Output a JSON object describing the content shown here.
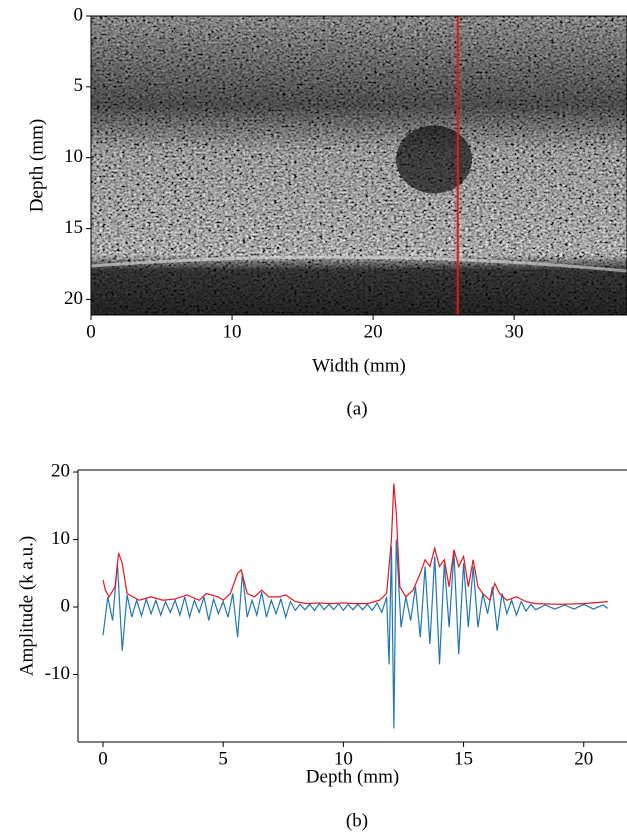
{
  "chart_data": [
    {
      "type": "image",
      "caption": "(a)",
      "xlabel": "Width (mm)",
      "ylabel": "Depth (mm)",
      "xlim": [
        0,
        38
      ],
      "ylim": [
        0,
        21.1
      ],
      "y_inverted": true,
      "xticks": [
        0,
        10,
        20,
        30
      ],
      "yticks": [
        0,
        5,
        10,
        15,
        20
      ],
      "vline": {
        "x": 26,
        "color": "#e8141e"
      }
    },
    {
      "type": "line",
      "caption": "(b)",
      "xlabel": "Depth (mm)",
      "ylabel": "Amplitude (k a.u.)",
      "xlim": [
        -1.04,
        21.8
      ],
      "ylim": [
        -20,
        20.3
      ],
      "xticks": [
        0,
        5,
        10,
        15,
        20
      ],
      "yticks": [
        -10,
        0,
        10,
        20
      ],
      "series": [
        {
          "color": "#1f77b4",
          "x": [
            0,
            0.2,
            0.4,
            0.6,
            0.8,
            1.0,
            1.2,
            1.4,
            1.6,
            1.8,
            2.0,
            2.2,
            2.4,
            2.6,
            2.8,
            3.0,
            3.2,
            3.4,
            3.6,
            3.8,
            4.0,
            4.2,
            4.4,
            4.6,
            4.8,
            5.0,
            5.2,
            5.4,
            5.6,
            5.8,
            6.0,
            6.2,
            6.4,
            6.6,
            6.8,
            7.0,
            7.2,
            7.4,
            7.6,
            7.8,
            8.0,
            8.2,
            8.4,
            8.6,
            8.8,
            9.0,
            9.2,
            9.4,
            9.6,
            9.8,
            10.0,
            10.2,
            10.4,
            10.6,
            10.8,
            11.0,
            11.2,
            11.4,
            11.6,
            11.8,
            11.9,
            12.0,
            12.1,
            12.2,
            12.4,
            12.6,
            12.8,
            13.0,
            13.2,
            13.4,
            13.6,
            13.8,
            14.0,
            14.2,
            14.4,
            14.6,
            14.8,
            15.0,
            15.2,
            15.4,
            15.6,
            15.8,
            16.0,
            16.2,
            16.4,
            16.6,
            16.8,
            17.0,
            17.2,
            17.4,
            17.6,
            17.8,
            18.0,
            18.4,
            18.8,
            19.2,
            19.6,
            20.0,
            20.4,
            20.8,
            21.0
          ],
          "values": [
            -4.2,
            1.5,
            -2,
            6.5,
            -6.5,
            1.8,
            -1.5,
            1,
            -1.3,
            1.2,
            -1,
            1,
            -1.2,
            0.8,
            -0.8,
            1,
            -1.2,
            1.5,
            -1.5,
            1,
            -0.8,
            1.5,
            -2,
            1.2,
            -1,
            0.8,
            -1.5,
            2,
            -4.5,
            5,
            -1.5,
            1,
            -1.2,
            2.2,
            -1.5,
            1,
            -1,
            1.2,
            -1.5,
            0.8,
            -0.5,
            0.4,
            -0.4,
            0.4,
            -0.5,
            0.5,
            -0.4,
            0.4,
            -0.4,
            0.5,
            -0.5,
            0.4,
            -0.4,
            0.4,
            -0.4,
            0.4,
            -0.5,
            0.6,
            -0.8,
            1.5,
            -8.5,
            9,
            -18,
            10,
            -3,
            1.5,
            -2,
            3,
            -4.5,
            6,
            -5.5,
            7.5,
            -8.5,
            6.5,
            -3,
            8,
            -7,
            6.5,
            -3,
            6,
            -3,
            2,
            -1,
            3,
            -3.5,
            2,
            -1,
            1,
            -1.2,
            0.8,
            -0.6,
            0.4,
            -0.4,
            0.3,
            -0.3,
            0.3,
            -0.3,
            0.4,
            -0.3,
            0.3,
            -0.2
          ]
        },
        {
          "color": "#e8141e",
          "x": [
            0,
            0.1,
            0.25,
            0.5,
            0.65,
            0.8,
            1.0,
            1.25,
            1.5,
            2.0,
            2.5,
            3.0,
            3.5,
            4.0,
            4.3,
            4.8,
            5.0,
            5.3,
            5.6,
            5.75,
            6.0,
            6.3,
            6.6,
            6.9,
            7.3,
            7.6,
            8.0,
            8.5,
            9.0,
            9.5,
            10.0,
            10.5,
            11.0,
            11.5,
            11.8,
            12.0,
            12.1,
            12.2,
            12.35,
            12.6,
            12.9,
            13.2,
            13.4,
            13.6,
            13.8,
            14.0,
            14.2,
            14.4,
            14.6,
            14.8,
            15.0,
            15.2,
            15.4,
            15.6,
            15.8,
            16.1,
            16.3,
            16.5,
            16.8,
            17.2,
            17.6,
            18.0,
            19.0,
            20.0,
            21.0
          ],
          "values": [
            4,
            2.5,
            1.5,
            3,
            8,
            6.5,
            2,
            1.5,
            1,
            1.5,
            1,
            1.2,
            1.8,
            1,
            2,
            1.5,
            1,
            2,
            5,
            5.5,
            2,
            1.5,
            2.5,
            1.5,
            1.5,
            1.8,
            0.8,
            0.5,
            0.6,
            0.5,
            0.6,
            0.5,
            0.5,
            1,
            2,
            10,
            18.3,
            14,
            3,
            1.5,
            2.5,
            5,
            7,
            6,
            8.7,
            6,
            7,
            3,
            8.5,
            6,
            7.5,
            3,
            7,
            3,
            2,
            1,
            3.5,
            2,
            1,
            1.5,
            0.8,
            0.5,
            0.4,
            0.5,
            0.8
          ]
        }
      ]
    }
  ]
}
